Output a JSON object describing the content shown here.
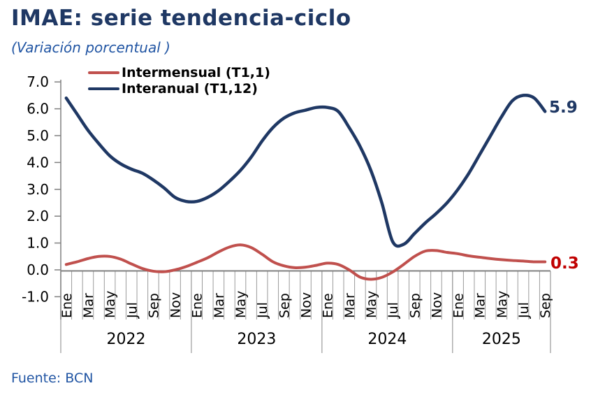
{
  "header": {
    "title": "IMAE: serie tendencia-ciclo",
    "subtitle": "(Variación porcentual )"
  },
  "footer": {
    "source": "Fuente: BCN"
  },
  "colors": {
    "title": "#1F3864",
    "subtitle": "#2155A3",
    "source": "#2155A3",
    "axis_line": "#808080",
    "tick_band_line": "#9A9A9A",
    "tick_text": "#000000"
  },
  "chart_data": {
    "type": "line",
    "title": "IMAE: serie tendencia-ciclo",
    "subtitle": "(Variación porcentual )",
    "ylim": [
      -1,
      7
    ],
    "ytick_labels": [
      "7.0",
      "6.0",
      "5.0",
      "4.0",
      "3.0",
      "2.0",
      "1.0",
      "0.0",
      "-1.0"
    ],
    "grid": false,
    "legend_position": "top-left",
    "month_cycle": [
      "Ene",
      "Feb",
      "Mar",
      "Abr",
      "May",
      "Jun",
      "Jul",
      "Ago",
      "Sep",
      "Oct",
      "Nov",
      "Dic"
    ],
    "month_label_every": 2,
    "years": [
      {
        "label": "2022",
        "months": 12
      },
      {
        "label": "2023",
        "months": 12
      },
      {
        "label": "2024",
        "months": 12
      },
      {
        "label": "2025",
        "months": 9
      }
    ],
    "series": [
      {
        "name": "Intermensual (T1,1)",
        "color": "#C0504D",
        "end_label": "0.3",
        "end_label_color": "#C00000",
        "values": [
          0.2,
          0.3,
          0.42,
          0.5,
          0.5,
          0.4,
          0.22,
          0.05,
          -0.05,
          -0.07,
          0.0,
          0.12,
          0.28,
          0.45,
          0.67,
          0.85,
          0.93,
          0.83,
          0.58,
          0.3,
          0.15,
          0.08,
          0.1,
          0.17,
          0.25,
          0.2,
          0.0,
          -0.27,
          -0.35,
          -0.28,
          -0.08,
          0.2,
          0.5,
          0.7,
          0.72,
          0.65,
          0.6,
          0.52,
          0.47,
          0.42,
          0.38,
          0.35,
          0.33,
          0.3,
          0.3
        ]
      },
      {
        "name": "Interanual (T1,12)",
        "color": "#1F3864",
        "end_label": "5.9",
        "end_label_color": "#1F3864",
        "values": [
          6.4,
          5.8,
          5.2,
          4.7,
          4.25,
          3.95,
          3.75,
          3.6,
          3.35,
          3.05,
          2.7,
          2.55,
          2.55,
          2.7,
          2.95,
          3.3,
          3.7,
          4.2,
          4.8,
          5.3,
          5.65,
          5.85,
          5.95,
          6.05,
          6.05,
          5.9,
          5.3,
          4.6,
          3.7,
          2.5,
          1.05,
          0.95,
          1.35,
          1.75,
          2.1,
          2.5,
          3.0,
          3.6,
          4.3,
          5.0,
          5.7,
          6.3,
          6.5,
          6.4,
          5.9
        ]
      }
    ]
  }
}
